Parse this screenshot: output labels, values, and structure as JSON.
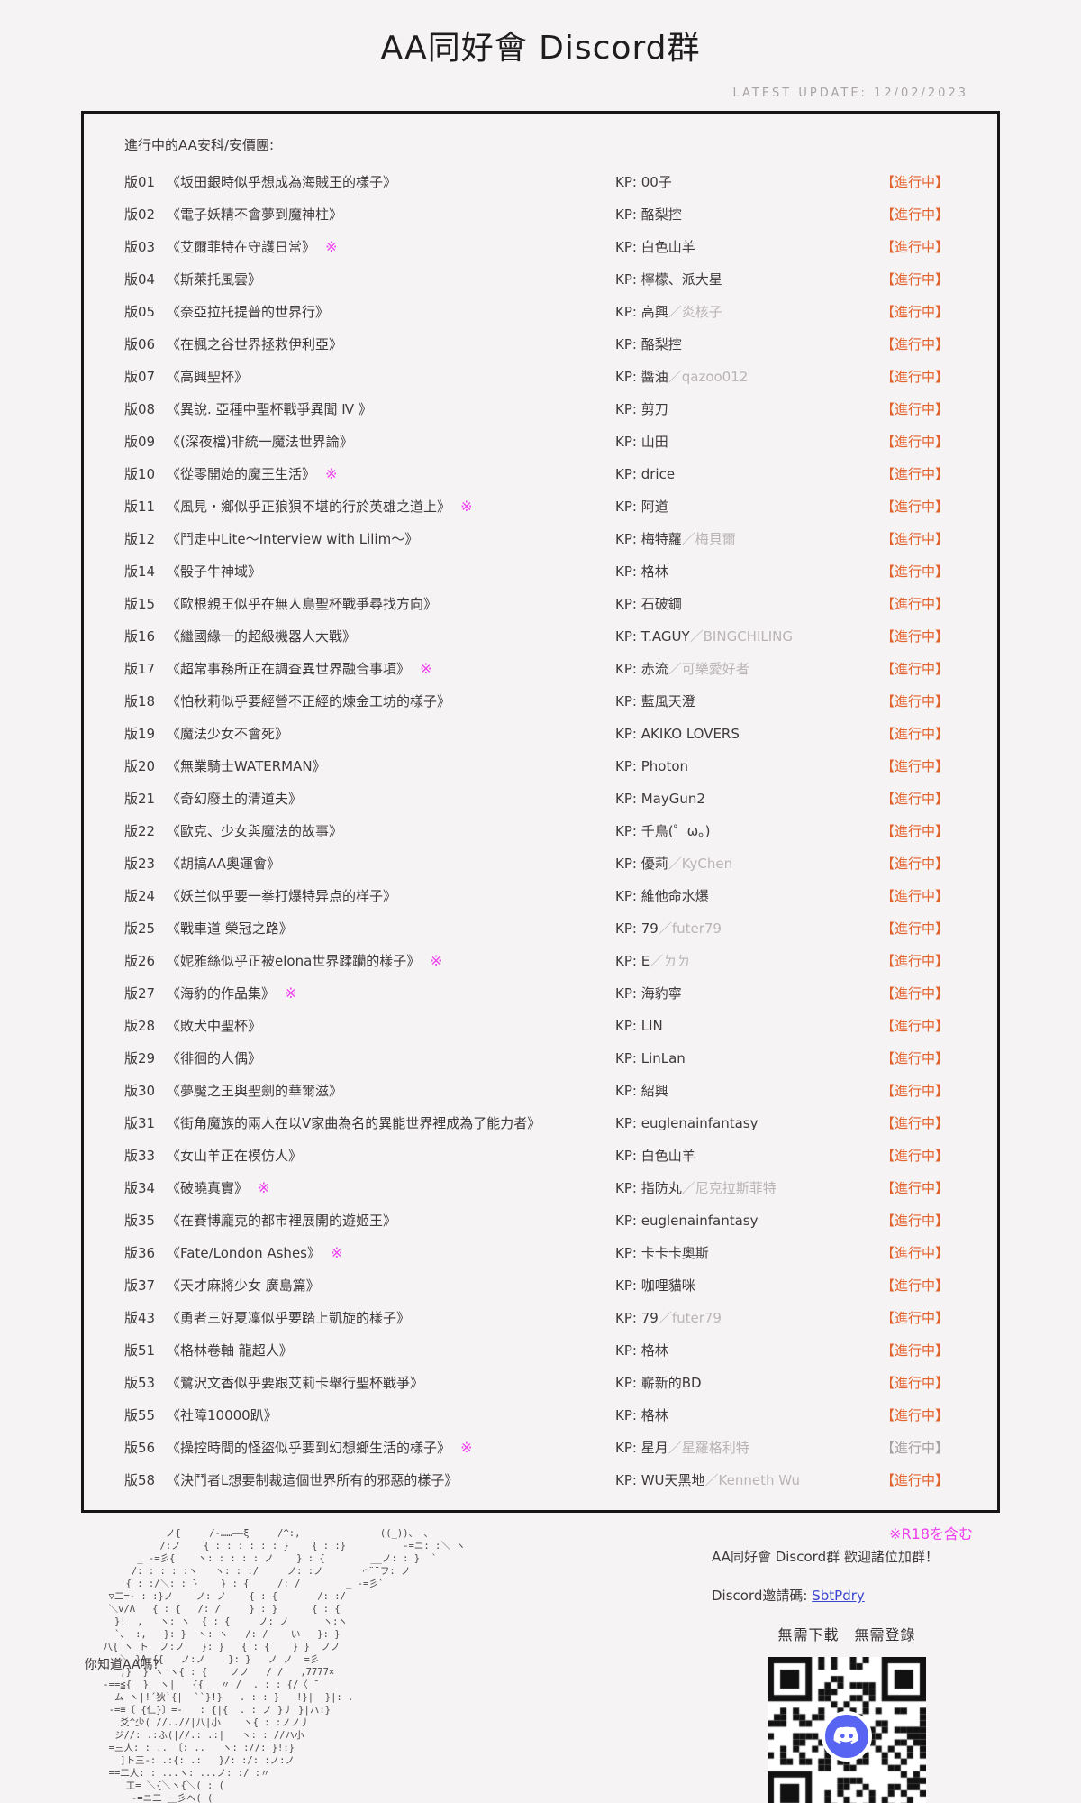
{
  "header": {
    "title": "AA同好會 Discord群",
    "latest_update": "LATEST UPDATE: 12/02/2023"
  },
  "list": {
    "heading": "進行中的AA安科/安價團:",
    "kp_label": "KP:",
    "r18_mark": "※",
    "status_label": "【進行中】",
    "rows": [
      {
        "id": "版01",
        "title": "《坂田銀時似乎想成為海賊王的樣子》",
        "r18": false,
        "kp": "00子",
        "sub": "",
        "status": "【進行中】",
        "muted": false
      },
      {
        "id": "版02",
        "title": "《電子妖精不會夢到魔神柱》",
        "r18": false,
        "kp": "酪梨控",
        "sub": "",
        "status": "【進行中】",
        "muted": false
      },
      {
        "id": "版03",
        "title": "《艾爾菲特在守護日常》",
        "r18": true,
        "kp": "白色山羊",
        "sub": "",
        "status": "【進行中】",
        "muted": false
      },
      {
        "id": "版04",
        "title": "《斯萊托風雲》",
        "r18": false,
        "kp": "檸檬、派大星",
        "sub": "",
        "status": "【進行中】",
        "muted": false
      },
      {
        "id": "版05",
        "title": "《奈亞拉托提普的世界行》",
        "r18": false,
        "kp": "高興",
        "sub": "炎核子",
        "status": "【進行中】",
        "muted": false
      },
      {
        "id": "版06",
        "title": "《在楓之谷世界拯救伊利亞》",
        "r18": false,
        "kp": "酪梨控",
        "sub": "",
        "status": "【進行中】",
        "muted": false
      },
      {
        "id": "版07",
        "title": "《高興聖杯》",
        "r18": false,
        "kp": "醬油",
        "sub": "qazoo012",
        "status": "【進行中】",
        "muted": false
      },
      {
        "id": "版08",
        "title": "《異說. 亞種中聖杯戰爭異聞 Ⅳ 》",
        "r18": false,
        "kp": "剪刀",
        "sub": "",
        "status": "【進行中】",
        "muted": false
      },
      {
        "id": "版09",
        "title": "《(深夜檔)非統一魔法世界論》",
        "r18": false,
        "kp": "山田",
        "sub": "",
        "status": "【進行中】",
        "muted": false
      },
      {
        "id": "版10",
        "title": "《從零開始的魔王生活》",
        "r18": true,
        "kp": "drice",
        "sub": "",
        "status": "【進行中】",
        "muted": false
      },
      {
        "id": "版11",
        "title": "《風見・鄉似乎正狼狽不堪的行於英雄之道上》",
        "r18": true,
        "kp": "阿道",
        "sub": "",
        "status": "【進行中】",
        "muted": false
      },
      {
        "id": "版12",
        "title": "《鬥走中Lite～Interview with Lilim～》",
        "r18": false,
        "kp": "梅特蘿",
        "sub": "梅貝爾",
        "status": "【進行中】",
        "muted": false
      },
      {
        "id": "版14",
        "title": "《骰子牛神域》",
        "r18": false,
        "kp": "格林",
        "sub": "",
        "status": "【進行中】",
        "muted": false
      },
      {
        "id": "版15",
        "title": "《歐根親王似乎在無人島聖杯戰爭尋找方向》",
        "r18": false,
        "kp": "石破鋼",
        "sub": "",
        "status": "【進行中】",
        "muted": false
      },
      {
        "id": "版16",
        "title": "《繼國緣一的超級機器人大戰》",
        "r18": false,
        "kp": "T.AGUY",
        "sub": "BINGCHILING",
        "status": "【進行中】",
        "muted": false
      },
      {
        "id": "版17",
        "title": "《超常事務所正在調查異世界融合事項》",
        "r18": true,
        "kp": "赤流",
        "sub": "可樂愛好者",
        "status": "【進行中】",
        "muted": false
      },
      {
        "id": "版18",
        "title": "《怕秋莉似乎要經營不正經的煉金工坊的樣子》",
        "r18": false,
        "kp": "藍風天澄",
        "sub": "",
        "status": "【進行中】",
        "muted": false
      },
      {
        "id": "版19",
        "title": "《魔法少女不會死》",
        "r18": false,
        "kp": "AKIKO LOVERS",
        "sub": "",
        "status": "【進行中】",
        "muted": false
      },
      {
        "id": "版20",
        "title": "《無業騎士WATERMAN》",
        "r18": false,
        "kp": "Photon",
        "sub": "",
        "status": "【進行中】",
        "muted": false
      },
      {
        "id": "版21",
        "title": "《奇幻廢土的清道夫》",
        "r18": false,
        "kp": "MayGun2",
        "sub": "",
        "status": "【進行中】",
        "muted": false
      },
      {
        "id": "版22",
        "title": "《歐克、少女與魔法的故事》",
        "r18": false,
        "kp": "千鳥(゜ω。)",
        "sub": "",
        "status": "【進行中】",
        "muted": false
      },
      {
        "id": "版23",
        "title": "《胡搞AA奧運會》",
        "r18": false,
        "kp": "優莉",
        "sub": "KyChen",
        "status": "【進行中】",
        "muted": false
      },
      {
        "id": "版24",
        "title": "《妖兰似乎要一拳打爆特异点的样子》",
        "r18": false,
        "kp": "維他命水爆",
        "sub": "",
        "status": "【進行中】",
        "muted": false
      },
      {
        "id": "版25",
        "title": "《戰車道 榮冠之路》",
        "r18": false,
        "kp": "79",
        "sub": "futer79",
        "status": "【進行中】",
        "muted": false
      },
      {
        "id": "版26",
        "title": "《妮雅絲似乎正被elona世界蹂躪的樣子》",
        "r18": true,
        "kp": "E",
        "sub": "ㄉㄉ",
        "status": "【進行中】",
        "muted": false
      },
      {
        "id": "版27",
        "title": "《海豹的作品集》",
        "r18": true,
        "kp": "海豹寧",
        "sub": "",
        "status": "【進行中】",
        "muted": false
      },
      {
        "id": "版28",
        "title": "《敗犬中聖杯》",
        "r18": false,
        "kp": "LIN",
        "sub": "",
        "status": "【進行中】",
        "muted": false
      },
      {
        "id": "版29",
        "title": "《徘徊的人偶》",
        "r18": false,
        "kp": "LinLan",
        "sub": "",
        "status": "【進行中】",
        "muted": false
      },
      {
        "id": "版30",
        "title": "《夢魘之王與聖劍的華爾滋》",
        "r18": false,
        "kp": "紹興",
        "sub": "",
        "status": "【進行中】",
        "muted": false
      },
      {
        "id": "版31",
        "title": "《街角魔族的兩人在以V家曲為名的異能世界裡成為了能力者》",
        "r18": false,
        "kp": "euglenainfantasy",
        "sub": "",
        "status": "【進行中】",
        "muted": false
      },
      {
        "id": "版33",
        "title": "《女山羊正在模仿人》",
        "r18": false,
        "kp": "白色山羊",
        "sub": "",
        "status": "【進行中】",
        "muted": false
      },
      {
        "id": "版34",
        "title": "《破曉真實》",
        "r18": true,
        "kp": "指防丸",
        "sub": "尼克拉斯菲特",
        "status": "【進行中】",
        "muted": false
      },
      {
        "id": "版35",
        "title": "《在賽博龐克的都市裡展開的遊姬王》",
        "r18": false,
        "kp": "euglenainfantasy",
        "sub": "",
        "status": "【進行中】",
        "muted": false
      },
      {
        "id": "版36",
        "title": "《Fate/London Ashes》",
        "r18": true,
        "kp": "卡卡卡奧斯",
        "sub": "",
        "status": "【進行中】",
        "muted": false
      },
      {
        "id": "版37",
        "title": "《天才麻將少女 廣島篇》",
        "r18": false,
        "kp": "咖哩貓咪",
        "sub": "",
        "status": "【進行中】",
        "muted": false
      },
      {
        "id": "版43",
        "title": "《勇者三好夏凜似乎要踏上凱旋的樣子》",
        "r18": false,
        "kp": "79",
        "sub": "futer79",
        "status": "【進行中】",
        "muted": false
      },
      {
        "id": "版51",
        "title": "《格林卷軸 龍超人》",
        "r18": false,
        "kp": "格林",
        "sub": "",
        "status": "【進行中】",
        "muted": false
      },
      {
        "id": "版53",
        "title": "《鷺沢文香似乎要跟艾莉卡舉行聖杯戰爭》",
        "r18": false,
        "kp": "嶄新的BD",
        "sub": "",
        "status": "【進行中】",
        "muted": false
      },
      {
        "id": "版55",
        "title": "《社障10000趴》",
        "r18": false,
        "kp": "格林",
        "sub": "",
        "status": "【進行中】",
        "muted": false
      },
      {
        "id": "版56",
        "title": "《操控時間的怪盜似乎要到幻想鄉生活的樣子》",
        "r18": true,
        "kp": "星月",
        "sub": "星羅格利特",
        "status": "【進行中】",
        "muted": true
      },
      {
        "id": "版58",
        "title": "《決鬥者L想要制裁這個世界所有的邪惡的樣子》",
        "r18": false,
        "kp": "WU天黑地",
        "sub": "Kenneth Wu",
        "status": "【進行中】",
        "muted": false
      }
    ]
  },
  "footer": {
    "r18_note": "※R18を含む",
    "aa_caption": "你知道AA嗎?",
    "invite_title": "AA同好會 Discord群  歡迎諸位加群！",
    "invite_code_label": "Discord邀請碼: ",
    "invite_code": "SbtPdry",
    "no_download": "無需下載　無需登錄",
    "ascii_art_lines": [
      "            ノ{     /-……――ξ     /^:,              ((_))、 、",
      "           /:ノ    { : : : : : : }    { : :}          -=ニ: :＼ ヽ",
      "       _ -=彡{    ヽ: : : : : ノ    } : {        __ノ: : }  `",
      "      /: : : : :ヽ   ヽ: : :/     ノ: :ノ       ⌒¨¨フ: ノ",
      "     { : :/＼: : }    } : {     /: /        _ -=彡`",
      "  ▽二=- : :}ノ    ノ: ノ    { : {       /: :/",
      "  ＼v/Λ   { : {   /: /     } : }      { : {",
      "   }!  ,   ヽ: ヽ  { : {     ノ: ノ      ヽ:ヽ",
      "   `、 :,   }: }  ヽ: ヽ   /: /    い   }: }",
      " 八{ ヽ ト  ノ:ノ   }: }   { : {    } }  ノノ",
      "    ＼ }Λ {{   ノ:ノ    }: }   ノ ノ  =彡",
      "    ,}  } ヽ ヽ{ : {    ノノ   / /   ,7777×",
      " -==≦{  }  ヽ|   {{   〃 /  . : : {/〈 ̄",
      "   ム ヽ|!´狄`{|  ``}!}   . : : }   !}|  }|: .",
      "  -=≡〔 {仁}〕=-   : {|{  . : ノ }丿 }|ハ:}",
      "    爻^少( //..//|八|小    ヽ{ : :ノノ丿",
      "   ジ//: .:ふ(|//.: .:|   ヽ: : //ハ小",
      "  =三人: : .. 〔: ..   ヽ: ://: }!:}",
      "    ]ト三-: .:{: .:   }/: :/: :ノ:ノ",
      "  ==二人: : ...ヽ: ...ノ: :/ :〃",
      "     工= ＼{＼ヽ{＼( : (",
      "      -=ニ二 ＿彡ヘ( ("
    ]
  },
  "colors": {
    "background": "#f6f3f4",
    "text": "#3e3a3c",
    "muted_text": "#b9b4b6",
    "border": "#161616",
    "status_active": "#e2622b",
    "status_muted": "#a5a0a2",
    "r18_mark": "#ee3fee",
    "link": "#3a46d2",
    "discord": "#5865f2"
  }
}
